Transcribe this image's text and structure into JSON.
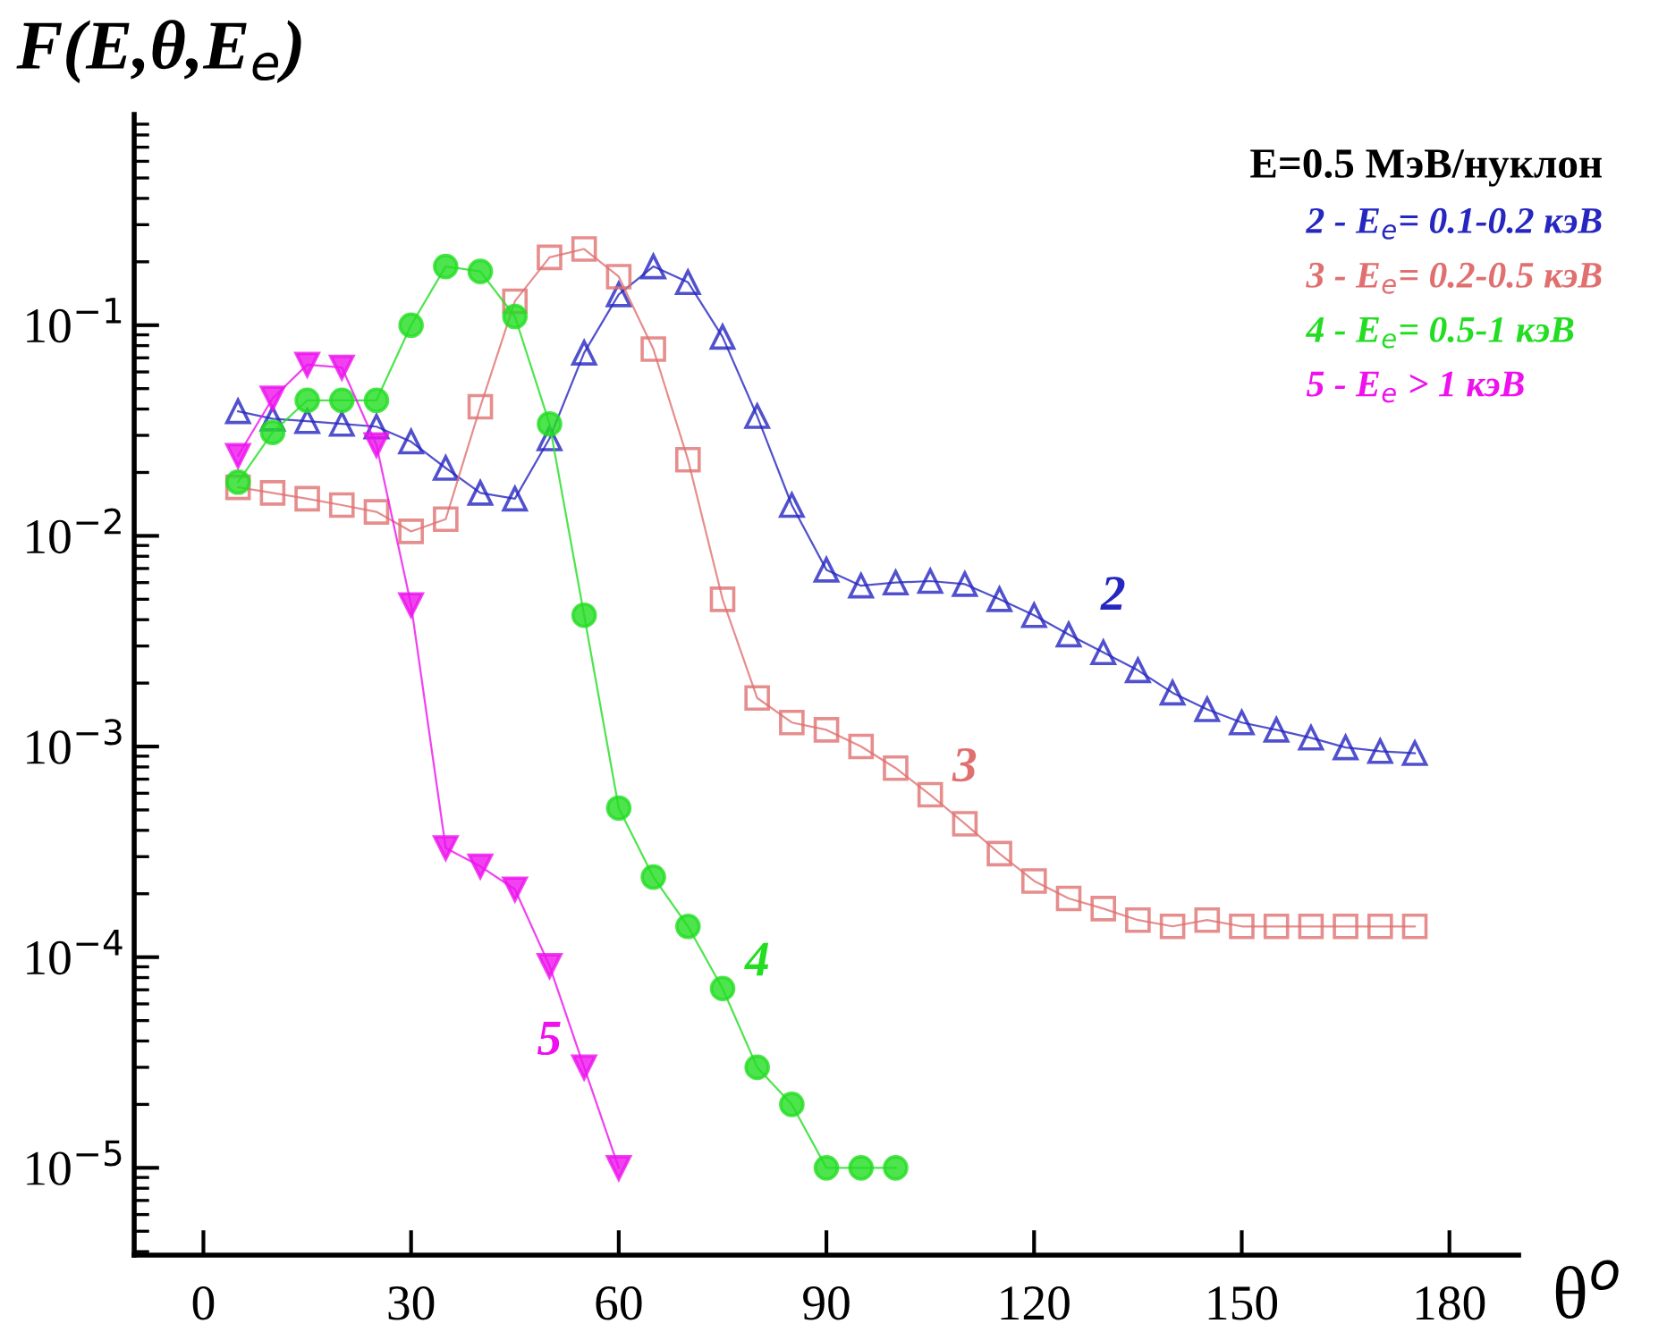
{
  "chart_data": {
    "type": "line",
    "xlabel": "θ$^{o}$",
    "ylabel": "F(E,θ,E$_{e}$)",
    "legend_title": "E=0.5 МэВ/нуклон",
    "xlim": [
      -10,
      190
    ],
    "xticks": [
      0,
      30,
      60,
      90,
      120,
      150,
      180
    ],
    "log": "y",
    "ylim": [
      3.85e-06,
      1.0
    ],
    "yticks": [
      {
        "value": 1e-05,
        "label": "10$^{−5}$"
      },
      {
        "value": 0.0001,
        "label": "10$^{−4}$"
      },
      {
        "value": 0.001,
        "label": "10$^{−3}$"
      },
      {
        "value": 0.01,
        "label": "10$^{−2}$"
      },
      {
        "value": 0.1,
        "label": "10$^{−1}$"
      }
    ],
    "grid": false,
    "legend": "top right",
    "line_style": "solid",
    "series": [
      {
        "name": "2 - E$_{e}$= 0.1-0.2 кэВ",
        "color": "#2626c0",
        "marker": "triangle",
        "x": [
          5,
          10,
          15,
          20,
          25,
          30,
          35,
          40,
          45,
          50,
          55,
          60,
          65,
          70,
          75,
          80,
          85,
          90,
          95,
          100,
          105,
          110,
          115,
          120,
          125,
          130,
          135,
          140,
          145,
          150,
          155,
          160,
          165,
          170,
          175
        ],
        "values": [
          0.039,
          0.036,
          0.035,
          0.034,
          0.033,
          0.028,
          0.021,
          0.016,
          0.015,
          0.029,
          0.074,
          0.14,
          0.19,
          0.16,
          0.088,
          0.037,
          0.014,
          0.0069,
          0.0058,
          0.006,
          0.0061,
          0.0059,
          0.005,
          0.0042,
          0.0034,
          0.0028,
          0.0023,
          0.0018,
          0.0015,
          0.0013,
          0.0012,
          0.0011,
          0.00099,
          0.00095,
          0.00093
        ]
      },
      {
        "name": "3 - E$_{e}$= 0.2-0.5 кэВ",
        "color": "#e07070",
        "marker": "square",
        "x": [
          5,
          10,
          15,
          20,
          25,
          30,
          35,
          40,
          45,
          50,
          55,
          60,
          65,
          70,
          75,
          80,
          85,
          90,
          95,
          100,
          105,
          110,
          115,
          120,
          125,
          130,
          135,
          140,
          145,
          150,
          155,
          160,
          165,
          170,
          175
        ],
        "values": [
          0.017,
          0.016,
          0.015,
          0.014,
          0.013,
          0.0105,
          0.012,
          0.041,
          0.13,
          0.21,
          0.23,
          0.17,
          0.077,
          0.023,
          0.005,
          0.0017,
          0.0013,
          0.0012,
          0.001,
          0.00079,
          0.00059,
          0.00043,
          0.00031,
          0.00023,
          0.00019,
          0.00017,
          0.00015,
          0.00014,
          0.00015,
          0.00014,
          0.00014,
          0.00014,
          0.00014,
          0.00014,
          0.00014
        ]
      },
      {
        "name": "4 - E$_{e}$= 0.5-1 кэВ",
        "color": "#22dd22",
        "marker": "circle",
        "x": [
          5,
          10,
          15,
          20,
          25,
          30,
          35,
          40,
          45,
          50,
          55,
          60,
          65,
          70,
          75,
          80,
          85,
          90,
          95,
          100
        ],
        "values": [
          0.018,
          0.031,
          0.044,
          0.044,
          0.044,
          0.1,
          0.19,
          0.18,
          0.11,
          0.034,
          0.0042,
          0.00051,
          0.00024,
          0.00014,
          7.1e-05,
          3e-05,
          2e-05,
          1e-05,
          1e-05,
          1e-05
        ]
      },
      {
        "name": "5 - E$_{e}$ > 1 кэВ",
        "color": "#ee11ee",
        "marker": "triangle_down",
        "x": [
          5,
          10,
          15,
          20,
          25,
          30,
          35,
          40,
          45,
          50,
          55,
          60
        ],
        "values": [
          0.024,
          0.045,
          0.065,
          0.063,
          0.027,
          0.0047,
          0.00033,
          0.00027,
          0.00021,
          9.1e-05,
          3e-05,
          1e-05
        ]
      }
    ],
    "annotations": [
      "2",
      "3",
      "4",
      "5"
    ]
  }
}
